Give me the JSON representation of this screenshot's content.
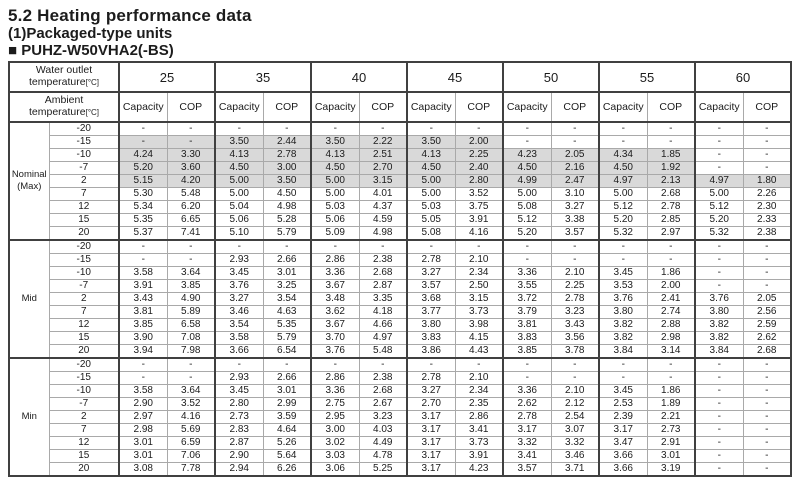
{
  "page": {
    "title": "5.2 Heating performance data",
    "subtitle": "(1)Packaged-type units",
    "model": "■ PUHZ-W50VHA2(-BS)"
  },
  "table": {
    "water_outlet": {
      "line1": "Water outlet",
      "line2": "temperature",
      "unit": "[°C]"
    },
    "ambient": {
      "line1": "Ambient",
      "line2": "temperature",
      "unit": "[°C]"
    },
    "capacity_label": "Capacity",
    "cop_label": "COP",
    "water_outlet_temps": [
      "25",
      "35",
      "40",
      "45",
      "50",
      "55",
      "60"
    ],
    "colors": {
      "shaded_cell": "#d9d9d9",
      "border_dark": "#404040",
      "border_light": "#a9a9a9"
    },
    "groups": [
      {
        "label": "Nominal",
        "label2": "(Max)",
        "rows": [
          {
            "t": "-20",
            "v": [
              "-",
              "-",
              "-",
              "-",
              "-",
              "-",
              "-",
              "-",
              "-",
              "-",
              "-",
              "-",
              "-",
              "-"
            ],
            "shaded": []
          },
          {
            "t": "-15",
            "v": [
              "-",
              "-",
              "3.50",
              "2.44",
              "3.50",
              "2.22",
              "3.50",
              "2.00",
              "-",
              "-",
              "-",
              "-",
              "-",
              "-"
            ],
            "shaded": [
              0,
              1,
              2,
              3
            ]
          },
          {
            "t": "-10",
            "v": [
              "4.24",
              "3.30",
              "4.13",
              "2.78",
              "4.13",
              "2.51",
              "4.13",
              "2.25",
              "4.23",
              "2.05",
              "4.34",
              "1.85",
              "-",
              "-"
            ],
            "shaded": [
              0,
              1,
              2,
              3,
              4,
              5
            ]
          },
          {
            "t": "-7",
            "v": [
              "5.20",
              "3.60",
              "4.50",
              "3.00",
              "4.50",
              "2.70",
              "4.50",
              "2.40",
              "4.50",
              "2.16",
              "4.50",
              "1.92",
              "-",
              "-"
            ],
            "shaded": [
              0,
              1,
              2,
              3,
              4,
              5
            ]
          },
          {
            "t": "2",
            "v": [
              "5.15",
              "4.20",
              "5.00",
              "3.50",
              "5.00",
              "3.15",
              "5.00",
              "2.80",
              "4.99",
              "2.47",
              "4.97",
              "2.13",
              "4.97",
              "1.80"
            ],
            "shaded": [
              0,
              1,
              2,
              3,
              4,
              5,
              6
            ]
          },
          {
            "t": "7",
            "v": [
              "5.30",
              "5.48",
              "5.00",
              "4.50",
              "5.00",
              "4.01",
              "5.00",
              "3.52",
              "5.00",
              "3.10",
              "5.00",
              "2.68",
              "5.00",
              "2.26"
            ],
            "shaded": []
          },
          {
            "t": "12",
            "v": [
              "5.34",
              "6.20",
              "5.04",
              "4.98",
              "5.03",
              "4.37",
              "5.03",
              "3.75",
              "5.08",
              "3.27",
              "5.12",
              "2.78",
              "5.12",
              "2.30"
            ],
            "shaded": []
          },
          {
            "t": "15",
            "v": [
              "5.35",
              "6.65",
              "5.06",
              "5.28",
              "5.06",
              "4.59",
              "5.05",
              "3.91",
              "5.12",
              "3.38",
              "5.20",
              "2.85",
              "5.20",
              "2.33"
            ],
            "shaded": []
          },
          {
            "t": "20",
            "v": [
              "5.37",
              "7.41",
              "5.10",
              "5.79",
              "5.09",
              "4.98",
              "5.08",
              "4.16",
              "5.20",
              "3.57",
              "5.32",
              "2.97",
              "5.32",
              "2.38"
            ],
            "shaded": []
          }
        ]
      },
      {
        "label": "Mid",
        "rows": [
          {
            "t": "-20",
            "v": [
              "-",
              "-",
              "-",
              "-",
              "-",
              "-",
              "-",
              "-",
              "-",
              "-",
              "-",
              "-",
              "-",
              "-"
            ],
            "shaded": []
          },
          {
            "t": "-15",
            "v": [
              "-",
              "-",
              "2.93",
              "2.66",
              "2.86",
              "2.38",
              "2.78",
              "2.10",
              "-",
              "-",
              "-",
              "-",
              "-",
              "-"
            ],
            "shaded": []
          },
          {
            "t": "-10",
            "v": [
              "3.58",
              "3.64",
              "3.45",
              "3.01",
              "3.36",
              "2.68",
              "3.27",
              "2.34",
              "3.36",
              "2.10",
              "3.45",
              "1.86",
              "-",
              "-"
            ],
            "shaded": []
          },
          {
            "t": "-7",
            "v": [
              "3.91",
              "3.85",
              "3.76",
              "3.25",
              "3.67",
              "2.87",
              "3.57",
              "2.50",
              "3.55",
              "2.25",
              "3.53",
              "2.00",
              "-",
              "-"
            ],
            "shaded": []
          },
          {
            "t": "2",
            "v": [
              "3.43",
              "4.90",
              "3.27",
              "3.54",
              "3.48",
              "3.35",
              "3.68",
              "3.15",
              "3.72",
              "2.78",
              "3.76",
              "2.41",
              "3.76",
              "2.05"
            ],
            "shaded": []
          },
          {
            "t": "7",
            "v": [
              "3.81",
              "5.89",
              "3.46",
              "4.63",
              "3.62",
              "4.18",
              "3.77",
              "3.73",
              "3.79",
              "3.23",
              "3.80",
              "2.74",
              "3.80",
              "2.56"
            ],
            "shaded": []
          },
          {
            "t": "12",
            "v": [
              "3.85",
              "6.58",
              "3.54",
              "5.35",
              "3.67",
              "4.66",
              "3.80",
              "3.98",
              "3.81",
              "3.43",
              "3.82",
              "2.88",
              "3.82",
              "2.59"
            ],
            "shaded": []
          },
          {
            "t": "15",
            "v": [
              "3.90",
              "7.08",
              "3.58",
              "5.79",
              "3.70",
              "4.97",
              "3.83",
              "4.15",
              "3.83",
              "3.56",
              "3.82",
              "2.98",
              "3.82",
              "2.62"
            ],
            "shaded": []
          },
          {
            "t": "20",
            "v": [
              "3.94",
              "7.98",
              "3.66",
              "6.54",
              "3.76",
              "5.48",
              "3.86",
              "4.43",
              "3.85",
              "3.78",
              "3.84",
              "3.14",
              "3.84",
              "2.68"
            ],
            "shaded": []
          }
        ]
      },
      {
        "label": "Min",
        "rows": [
          {
            "t": "-20",
            "v": [
              "-",
              "-",
              "-",
              "-",
              "-",
              "-",
              "-",
              "-",
              "-",
              "-",
              "-",
              "-",
              "-",
              "-"
            ],
            "shaded": []
          },
          {
            "t": "-15",
            "v": [
              "-",
              "-",
              "2.93",
              "2.66",
              "2.86",
              "2.38",
              "2.78",
              "2.10",
              "-",
              "-",
              "-",
              "-",
              "-",
              "-"
            ],
            "shaded": []
          },
          {
            "t": "-10",
            "v": [
              "3.58",
              "3.64",
              "3.45",
              "3.01",
              "3.36",
              "2.68",
              "3.27",
              "2.34",
              "3.36",
              "2.10",
              "3.45",
              "1.86",
              "-",
              "-"
            ],
            "shaded": []
          },
          {
            "t": "-7",
            "v": [
              "2.90",
              "3.52",
              "2.80",
              "2.99",
              "2.75",
              "2.67",
              "2.70",
              "2.35",
              "2.62",
              "2.12",
              "2.53",
              "1.89",
              "-",
              "-"
            ],
            "shaded": []
          },
          {
            "t": "2",
            "v": [
              "2.97",
              "4.16",
              "2.73",
              "3.59",
              "2.95",
              "3.23",
              "3.17",
              "2.86",
              "2.78",
              "2.54",
              "2.39",
              "2.21",
              "-",
              "-"
            ],
            "shaded": []
          },
          {
            "t": "7",
            "v": [
              "2.98",
              "5.69",
              "2.83",
              "4.64",
              "3.00",
              "4.03",
              "3.17",
              "3.41",
              "3.17",
              "3.07",
              "3.17",
              "2.73",
              "-",
              "-"
            ],
            "shaded": []
          },
          {
            "t": "12",
            "v": [
              "3.01",
              "6.59",
              "2.87",
              "5.26",
              "3.02",
              "4.49",
              "3.17",
              "3.73",
              "3.32",
              "3.32",
              "3.47",
              "2.91",
              "-",
              "-"
            ],
            "shaded": []
          },
          {
            "t": "15",
            "v": [
              "3.01",
              "7.06",
              "2.90",
              "5.64",
              "3.03",
              "4.78",
              "3.17",
              "3.91",
              "3.41",
              "3.46",
              "3.66",
              "3.01",
              "-",
              "-"
            ],
            "shaded": []
          },
          {
            "t": "20",
            "v": [
              "3.08",
              "7.78",
              "2.94",
              "6.26",
              "3.06",
              "5.25",
              "3.17",
              "4.23",
              "3.57",
              "3.71",
              "3.66",
              "3.19",
              "-",
              "-"
            ],
            "shaded": []
          }
        ]
      }
    ]
  }
}
